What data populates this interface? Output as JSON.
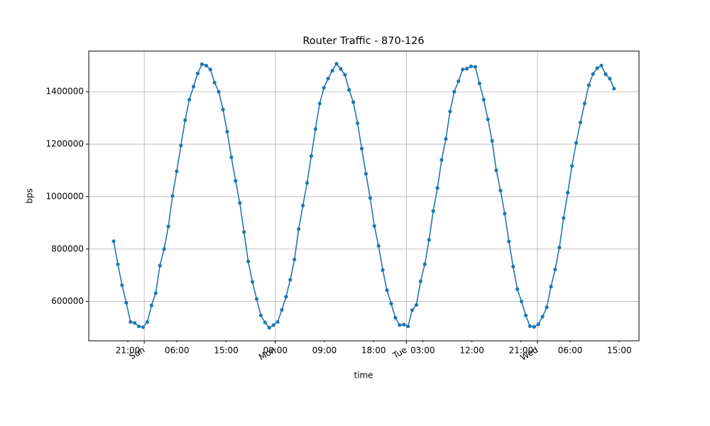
{
  "chart_data": {
    "type": "line",
    "title": "Router Traffic - 870-126",
    "x_label": "time",
    "y_label": "bps",
    "x": [
      -5.6,
      -4.83,
      -4.06,
      -3.29,
      -2.52,
      -1.75,
      -0.98,
      -0.21,
      0.56,
      1.33,
      2.1,
      2.87,
      3.64,
      4.41,
      5.18,
      5.95,
      6.72,
      7.49,
      8.26,
      9.03,
      9.8,
      10.57,
      11.34,
      12.11,
      12.88,
      13.65,
      14.42,
      15.19,
      15.96,
      16.73,
      17.5,
      18.27,
      19.04,
      19.81,
      20.58,
      21.35,
      22.12,
      22.89,
      23.66,
      24.43,
      25.2,
      25.97,
      26.74,
      27.51,
      28.28,
      29.05,
      29.82,
      30.59,
      31.36,
      32.13,
      32.9,
      33.67,
      34.44,
      35.21,
      35.98,
      36.75,
      37.52,
      38.29,
      39.06,
      39.83,
      40.6,
      41.37,
      42.14,
      42.91,
      43.68,
      44.45,
      45.22,
      45.99,
      46.76,
      47.53,
      48.3,
      49.07,
      49.84,
      50.61,
      51.38,
      52.15,
      52.92,
      53.69,
      54.46,
      55.23,
      56.0,
      56.77,
      57.54,
      58.31,
      59.08,
      59.85,
      60.62,
      61.39,
      62.16,
      62.93,
      63.7,
      64.47,
      65.24,
      66.01,
      66.78,
      67.55,
      68.32,
      69.09,
      69.86,
      70.63,
      71.4,
      72.17,
      72.94,
      73.71,
      74.48,
      75.25,
      76.02,
      76.79,
      77.56,
      78.33,
      79.1,
      79.87,
      80.64,
      81.41,
      82.18,
      82.95,
      83.72,
      84.49,
      85.26,
      86.03
    ],
    "series": [
      {
        "name": "bps",
        "color": "#1f77b4",
        "values": [
          830000,
          742000,
          662000,
          595000,
          522000,
          518000,
          505000,
          502000,
          522000,
          585000,
          632000,
          737000,
          800000,
          886000,
          1003000,
          1097000,
          1195000,
          1292000,
          1370000,
          1420000,
          1470000,
          1505000,
          1500000,
          1485000,
          1435000,
          1400000,
          1332000,
          1248000,
          1150000,
          1060000,
          976000,
          865000,
          753000,
          675000,
          610000,
          547000,
          520000,
          500000,
          510000,
          522000,
          568000,
          618000,
          683000,
          760000,
          876000,
          966000,
          1052000,
          1155000,
          1258000,
          1355000,
          1415000,
          1450000,
          1480000,
          1507000,
          1487000,
          1465000,
          1407000,
          1360000,
          1280000,
          1183000,
          1087000,
          995000,
          888000,
          812000,
          720000,
          643000,
          592000,
          538000,
          510000,
          512000,
          505000,
          567000,
          587000,
          677000,
          742000,
          835000,
          945000,
          1033000,
          1140000,
          1220000,
          1325000,
          1400000,
          1440000,
          1485000,
          1488000,
          1497000,
          1495000,
          1432000,
          1370000,
          1295000,
          1213000,
          1100000,
          1023000,
          935000,
          829000,
          733000,
          647000,
          600000,
          547000,
          506000,
          503000,
          513000,
          542000,
          578000,
          657000,
          722000,
          806000,
          918000,
          1015000,
          1117000,
          1205000,
          1283000,
          1355000,
          1425000,
          1468000,
          1490000,
          1500000,
          1467000,
          1450000,
          1412000
        ]
      }
    ],
    "xlim": [
      -10.16,
      90.6
    ],
    "xticks": [
      {
        "value": 0,
        "label": "Sun"
      },
      {
        "value": 24,
        "label": "Mon"
      },
      {
        "value": 48,
        "label": "Tue"
      },
      {
        "value": 72,
        "label": "Wed"
      }
    ],
    "xticks_minor": [
      {
        "value": -3,
        "label": "21:00"
      },
      {
        "value": 6,
        "label": "06:00"
      },
      {
        "value": 15,
        "label": "15:00"
      },
      {
        "value": 24,
        "label": "00:00"
      },
      {
        "value": 33,
        "label": "09:00"
      },
      {
        "value": 42,
        "label": "18:00"
      },
      {
        "value": 51,
        "label": "03:00"
      },
      {
        "value": 60,
        "label": "12:00"
      },
      {
        "value": 69,
        "label": "21:00"
      },
      {
        "value": 78,
        "label": "06:00"
      },
      {
        "value": 87,
        "label": "15:00"
      }
    ],
    "ylim": [
      450000,
      1555000
    ],
    "yticks": [
      600000,
      800000,
      1000000,
      1200000,
      1400000
    ],
    "grid": true
  }
}
